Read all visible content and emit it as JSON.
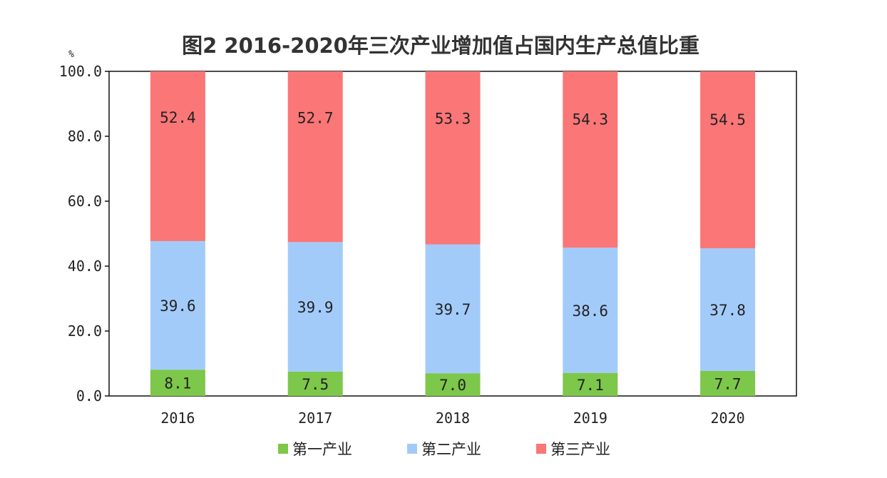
{
  "chart_data": {
    "type": "bar",
    "stacked": true,
    "title": "图2   2016-2020年三次产业增加值占国内生产总值比重",
    "unit": "%",
    "categories": [
      "2016",
      "2017",
      "2018",
      "2019",
      "2020"
    ],
    "ylim": [
      0,
      100
    ],
    "yticks": [
      "0.0",
      "20.0",
      "40.0",
      "60.0",
      "80.0",
      "100.0"
    ],
    "ytick_values": [
      0,
      20,
      40,
      60,
      80,
      100
    ],
    "series": [
      {
        "name": "第一产业",
        "color": "#7dc74a",
        "values": [
          8.1,
          7.5,
          7.0,
          7.1,
          7.7
        ],
        "labels": [
          "8.1",
          "7.5",
          "7.0",
          "7.1",
          "7.7"
        ]
      },
      {
        "name": "第二产业",
        "color": "#a3cbfa",
        "values": [
          39.6,
          39.9,
          39.7,
          38.6,
          37.8
        ],
        "labels": [
          "39.6",
          "39.9",
          "39.7",
          "38.6",
          "37.8"
        ]
      },
      {
        "name": "第三产业",
        "color": "#fb7677",
        "values": [
          52.4,
          52.7,
          53.3,
          54.3,
          54.5
        ],
        "labels": [
          "52.4",
          "52.7",
          "53.3",
          "54.3",
          "54.5"
        ]
      }
    ],
    "legend_position": "bottom"
  }
}
